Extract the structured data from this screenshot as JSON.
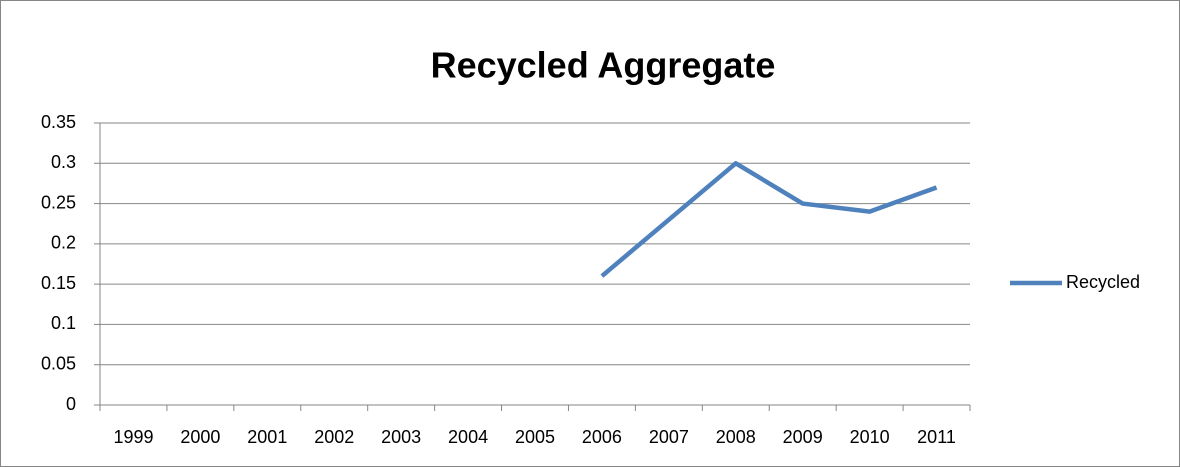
{
  "chart_data": {
    "type": "line",
    "title": "Recycled Aggregate",
    "categories": [
      "1999",
      "2000",
      "2001",
      "2002",
      "2003",
      "2004",
      "2005",
      "2006",
      "2007",
      "2008",
      "2009",
      "2010",
      "2011"
    ],
    "series": [
      {
        "name": "Recycled",
        "color": "#4f81bd",
        "values": [
          null,
          null,
          null,
          null,
          null,
          null,
          null,
          0.16,
          0.23,
          0.3,
          0.25,
          0.24,
          0.27
        ]
      }
    ],
    "ylim": [
      0,
      0.35
    ],
    "yticks": [
      0,
      0.05,
      0.1,
      0.15,
      0.2,
      0.25,
      0.3,
      0.35
    ],
    "grid": true,
    "legend": "right"
  }
}
